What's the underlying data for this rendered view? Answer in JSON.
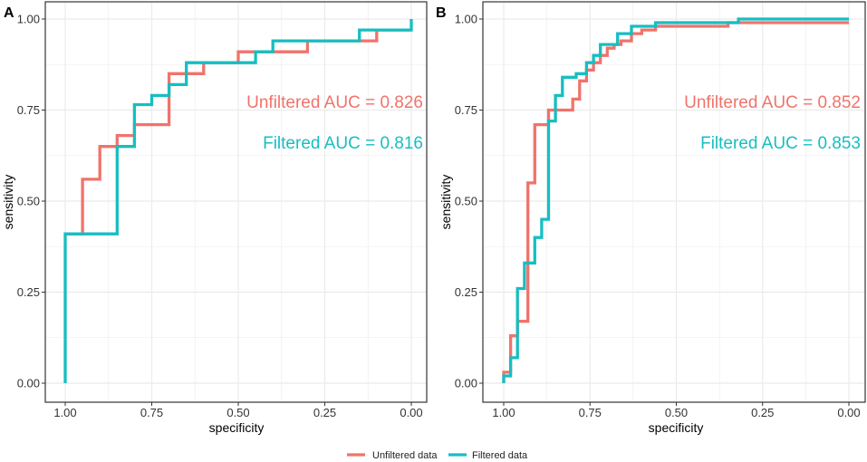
{
  "colors": {
    "unfiltered": "#F0736B",
    "filtered": "#17BEC1",
    "grid": "#EBEBEB",
    "frame": "#333333"
  },
  "chart_data": [
    {
      "panel": "A",
      "type": "line",
      "xlabel": "specificity",
      "ylabel": "sensitivity",
      "xlim": [
        1.0,
        0.0
      ],
      "ylim": [
        0.0,
        1.0
      ],
      "x_reversed": true,
      "xticks": [
        "1.00",
        "0.75",
        "0.50",
        "0.25",
        "0.00"
      ],
      "yticks": [
        "0.00",
        "0.25",
        "0.50",
        "0.75",
        "1.00"
      ],
      "grid": true,
      "annotations": [
        {
          "series": "Unfiltered data",
          "text": "Unfiltered AUC = 0.826"
        },
        {
          "series": "Filtered data",
          "text": "Filtered AUC = 0.816"
        }
      ],
      "series": [
        {
          "name": "Unfiltered data",
          "x": [
            1.0,
            0.95,
            0.95,
            0.9,
            0.9,
            0.85,
            0.85,
            0.8,
            0.8,
            0.75,
            0.75,
            0.7,
            0.7,
            0.65,
            0.65,
            0.6,
            0.6,
            0.5,
            0.5,
            0.3,
            0.3,
            0.1,
            0.1,
            0.0
          ],
          "y": [
            0.41,
            0.41,
            0.56,
            0.56,
            0.65,
            0.65,
            0.68,
            0.68,
            0.71,
            0.71,
            0.71,
            0.71,
            0.85,
            0.85,
            0.85,
            0.85,
            0.88,
            0.88,
            0.91,
            0.91,
            0.94,
            0.94,
            0.97,
            0.97
          ]
        },
        {
          "name": "Filtered data",
          "x": [
            1.0,
            1.0,
            0.85,
            0.85,
            0.8,
            0.8,
            0.75,
            0.75,
            0.7,
            0.7,
            0.65,
            0.65,
            0.45,
            0.45,
            0.4,
            0.4,
            0.15,
            0.15,
            0.0,
            0.0
          ],
          "y": [
            0.0,
            0.41,
            0.41,
            0.65,
            0.65,
            0.765,
            0.765,
            0.79,
            0.79,
            0.82,
            0.82,
            0.88,
            0.88,
            0.91,
            0.91,
            0.94,
            0.94,
            0.97,
            0.97,
            1.0
          ]
        }
      ]
    },
    {
      "panel": "B",
      "type": "line",
      "xlabel": "specificity",
      "ylabel": "sensitivity",
      "xlim": [
        1.0,
        0.0
      ],
      "ylim": [
        0.0,
        1.0
      ],
      "x_reversed": true,
      "xticks": [
        "1.00",
        "0.75",
        "0.50",
        "0.25",
        "0.00"
      ],
      "yticks": [
        "0.00",
        "0.25",
        "0.50",
        "0.75",
        "1.00"
      ],
      "grid": true,
      "annotations": [
        {
          "series": "Unfiltered data",
          "text": "Unfiltered AUC = 0.852"
        },
        {
          "series": "Filtered data",
          "text": "Filtered AUC = 0.853"
        }
      ],
      "series": [
        {
          "name": "Unfiltered data",
          "x": [
            1.0,
            1.0,
            0.98,
            0.98,
            0.96,
            0.96,
            0.93,
            0.93,
            0.91,
            0.91,
            0.87,
            0.87,
            0.83,
            0.83,
            0.8,
            0.8,
            0.78,
            0.78,
            0.76,
            0.76,
            0.74,
            0.74,
            0.72,
            0.72,
            0.7,
            0.7,
            0.68,
            0.68,
            0.66,
            0.66,
            0.63,
            0.63,
            0.6,
            0.6,
            0.56,
            0.56,
            0.35,
            0.35,
            0.0
          ],
          "y": [
            0.0,
            0.03,
            0.03,
            0.13,
            0.13,
            0.17,
            0.17,
            0.55,
            0.55,
            0.71,
            0.71,
            0.75,
            0.75,
            0.75,
            0.75,
            0.78,
            0.78,
            0.83,
            0.83,
            0.86,
            0.86,
            0.88,
            0.88,
            0.9,
            0.9,
            0.92,
            0.92,
            0.93,
            0.93,
            0.94,
            0.94,
            0.96,
            0.96,
            0.97,
            0.97,
            0.98,
            0.98,
            0.99,
            0.99
          ]
        },
        {
          "name": "Filtered data",
          "x": [
            1.0,
            1.0,
            0.98,
            0.98,
            0.96,
            0.96,
            0.94,
            0.94,
            0.91,
            0.91,
            0.89,
            0.89,
            0.87,
            0.87,
            0.85,
            0.85,
            0.83,
            0.83,
            0.79,
            0.79,
            0.76,
            0.76,
            0.74,
            0.74,
            0.72,
            0.72,
            0.7,
            0.7,
            0.67,
            0.67,
            0.63,
            0.63,
            0.56,
            0.56,
            0.32,
            0.32,
            0.0
          ],
          "y": [
            0.0,
            0.02,
            0.02,
            0.07,
            0.07,
            0.26,
            0.26,
            0.33,
            0.33,
            0.4,
            0.4,
            0.45,
            0.45,
            0.72,
            0.72,
            0.79,
            0.79,
            0.84,
            0.84,
            0.85,
            0.85,
            0.88,
            0.88,
            0.9,
            0.9,
            0.93,
            0.93,
            0.93,
            0.93,
            0.96,
            0.96,
            0.98,
            0.98,
            0.99,
            0.99,
            1.0,
            1.0
          ]
        }
      ]
    }
  ],
  "legend": {
    "items": [
      {
        "label": "Unfiltered data",
        "series": "Unfiltered data"
      },
      {
        "label": "Filtered data",
        "series": "Filtered data"
      }
    ]
  }
}
